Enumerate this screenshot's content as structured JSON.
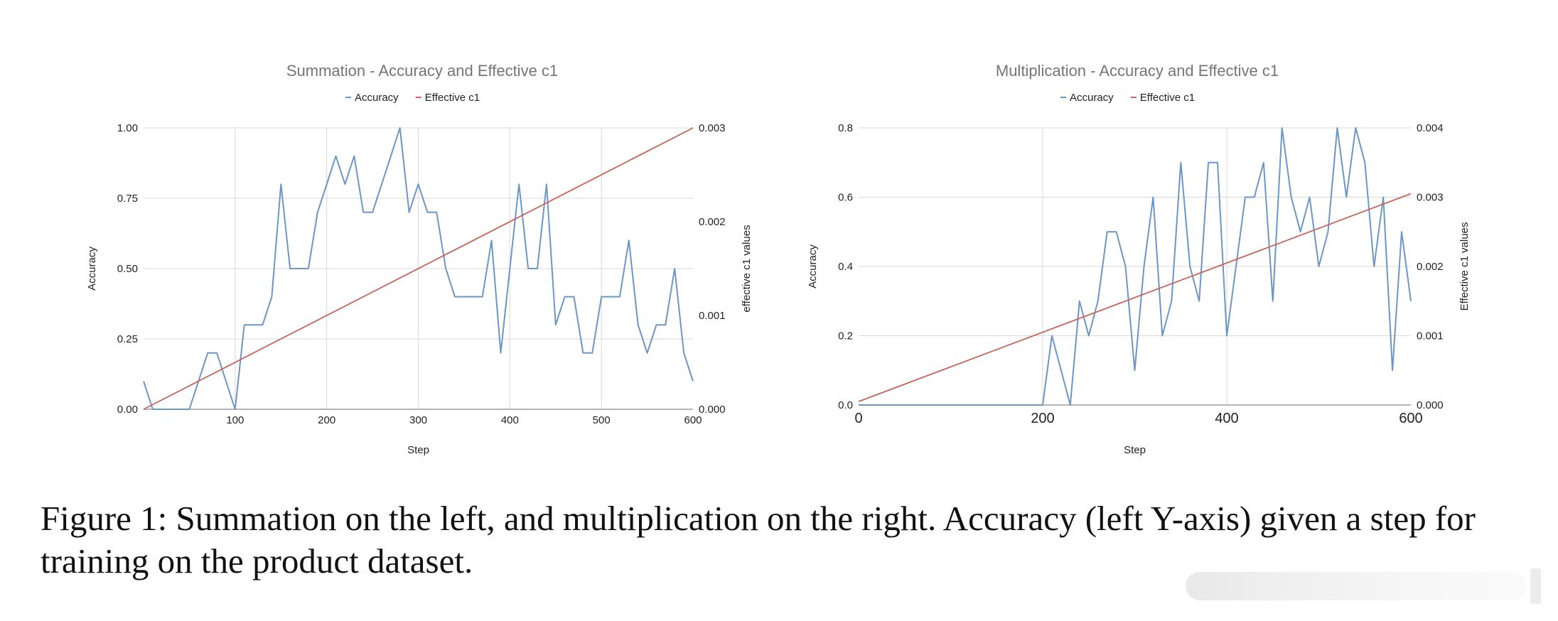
{
  "colors": {
    "accuracy": "#6c96c6",
    "effective": "#c6655a",
    "grid": "#d9d9d9",
    "axis": "#9e9e9e",
    "title": "#757575",
    "text": "#222222"
  },
  "chart_data": [
    {
      "type": "line",
      "title": "Summation - Accuracy and Effective c1",
      "xlabel": "Step",
      "ylabel": "Accuracy",
      "y2label": "effective c1 values",
      "xlim": [
        0,
        600
      ],
      "ylim": [
        0,
        1
      ],
      "y2lim": [
        0,
        0.003
      ],
      "x_ticks": [
        100,
        200,
        300,
        400,
        500,
        600
      ],
      "x_tick_labels": [
        "100",
        "200",
        "300",
        "400",
        "500",
        "600"
      ],
      "y_ticks": [
        0,
        0.25,
        0.5,
        0.75,
        1.0
      ],
      "y_tick_labels": [
        "0.00",
        "0.25",
        "0.50",
        "0.75",
        "1.00"
      ],
      "y2_ticks": [
        0,
        0.001,
        0.002,
        0.003
      ],
      "y2_tick_labels": [
        "0.000",
        "0.001",
        "0.002",
        "0.003"
      ],
      "legend": {
        "position": "top",
        "entries": [
          "Accuracy",
          "Effective c1"
        ]
      },
      "grid": true,
      "series": [
        {
          "name": "Accuracy",
          "axis": "left",
          "x": [
            0,
            10,
            20,
            30,
            40,
            50,
            60,
            70,
            80,
            90,
            100,
            110,
            120,
            130,
            140,
            150,
            160,
            170,
            180,
            190,
            200,
            210,
            220,
            230,
            240,
            250,
            260,
            270,
            280,
            290,
            300,
            310,
            320,
            330,
            340,
            350,
            360,
            370,
            380,
            390,
            400,
            410,
            420,
            430,
            440,
            450,
            460,
            470,
            480,
            490,
            500,
            510,
            520,
            530,
            540,
            550,
            560,
            570,
            580,
            590,
            600
          ],
          "y": [
            0.1,
            0,
            0,
            0,
            0,
            0,
            0.1,
            0.2,
            0.2,
            0.1,
            0,
            0.3,
            0.3,
            0.3,
            0.4,
            0.8,
            0.5,
            0.5,
            0.5,
            0.7,
            0.8,
            0.9,
            0.8,
            0.9,
            0.7,
            0.7,
            0.8,
            0.9,
            1.0,
            0.7,
            0.8,
            0.7,
            0.7,
            0.5,
            0.4,
            0.4,
            0.4,
            0.4,
            0.6,
            0.2,
            0.5,
            0.8,
            0.5,
            0.5,
            0.8,
            0.3,
            0.4,
            0.4,
            0.2,
            0.2,
            0.4,
            0.4,
            0.4,
            0.6,
            0.3,
            0.2,
            0.3,
            0.3,
            0.5,
            0.2,
            0.1
          ]
        },
        {
          "name": "Effective c1",
          "axis": "right",
          "x": [
            0,
            600
          ],
          "y": [
            0,
            0.003
          ]
        }
      ]
    },
    {
      "type": "line",
      "title": "Multiplication - Accuracy and Effective c1",
      "xlabel": "Step",
      "ylabel": "Accuracy",
      "y2label": "Effective c1 values",
      "xlim": [
        0,
        600
      ],
      "ylim": [
        0,
        0.8
      ],
      "y2lim": [
        0,
        0.004
      ],
      "x_ticks": [
        0,
        200,
        400,
        600
      ],
      "x_tick_labels": [
        "0",
        "200",
        "400",
        "600"
      ],
      "y_ticks": [
        0,
        0.2,
        0.4,
        0.6,
        0.8
      ],
      "y_tick_labels": [
        "0.0",
        "0.2",
        "0.4",
        "0.6",
        "0.8"
      ],
      "y2_ticks": [
        0,
        0.001,
        0.002,
        0.003,
        0.004
      ],
      "y2_tick_labels": [
        "0.000",
        "0.001",
        "0.002",
        "0.003",
        "0.004"
      ],
      "legend": {
        "position": "top",
        "entries": [
          "Accuracy",
          "Effective c1"
        ]
      },
      "grid": true,
      "series": [
        {
          "name": "Accuracy",
          "axis": "left",
          "x": [
            0,
            200,
            210,
            220,
            230,
            240,
            250,
            260,
            270,
            280,
            290,
            300,
            310,
            320,
            330,
            340,
            350,
            360,
            370,
            380,
            390,
            400,
            410,
            420,
            430,
            440,
            450,
            460,
            470,
            480,
            490,
            500,
            510,
            520,
            530,
            540,
            550,
            560,
            570,
            580,
            590,
            600
          ],
          "y": [
            0,
            0,
            0.2,
            0.1,
            0,
            0.3,
            0.2,
            0.3,
            0.5,
            0.5,
            0.4,
            0.1,
            0.4,
            0.6,
            0.2,
            0.3,
            0.7,
            0.4,
            0.3,
            0.7,
            0.7,
            0.2,
            0.4,
            0.6,
            0.6,
            0.7,
            0.3,
            0.8,
            0.6,
            0.5,
            0.6,
            0.4,
            0.5,
            0.8,
            0.6,
            0.8,
            0.7,
            0.4,
            0.6,
            0.1,
            0.5,
            0.3
          ]
        },
        {
          "name": "Effective c1",
          "axis": "right",
          "x": [
            0,
            600
          ],
          "y": [
            5e-05,
            0.00305
          ]
        }
      ]
    }
  ],
  "caption": "Figure 1: Summation on the left, and multiplication on the right. Accuracy (left Y-axis) given a step for training on the product dataset."
}
